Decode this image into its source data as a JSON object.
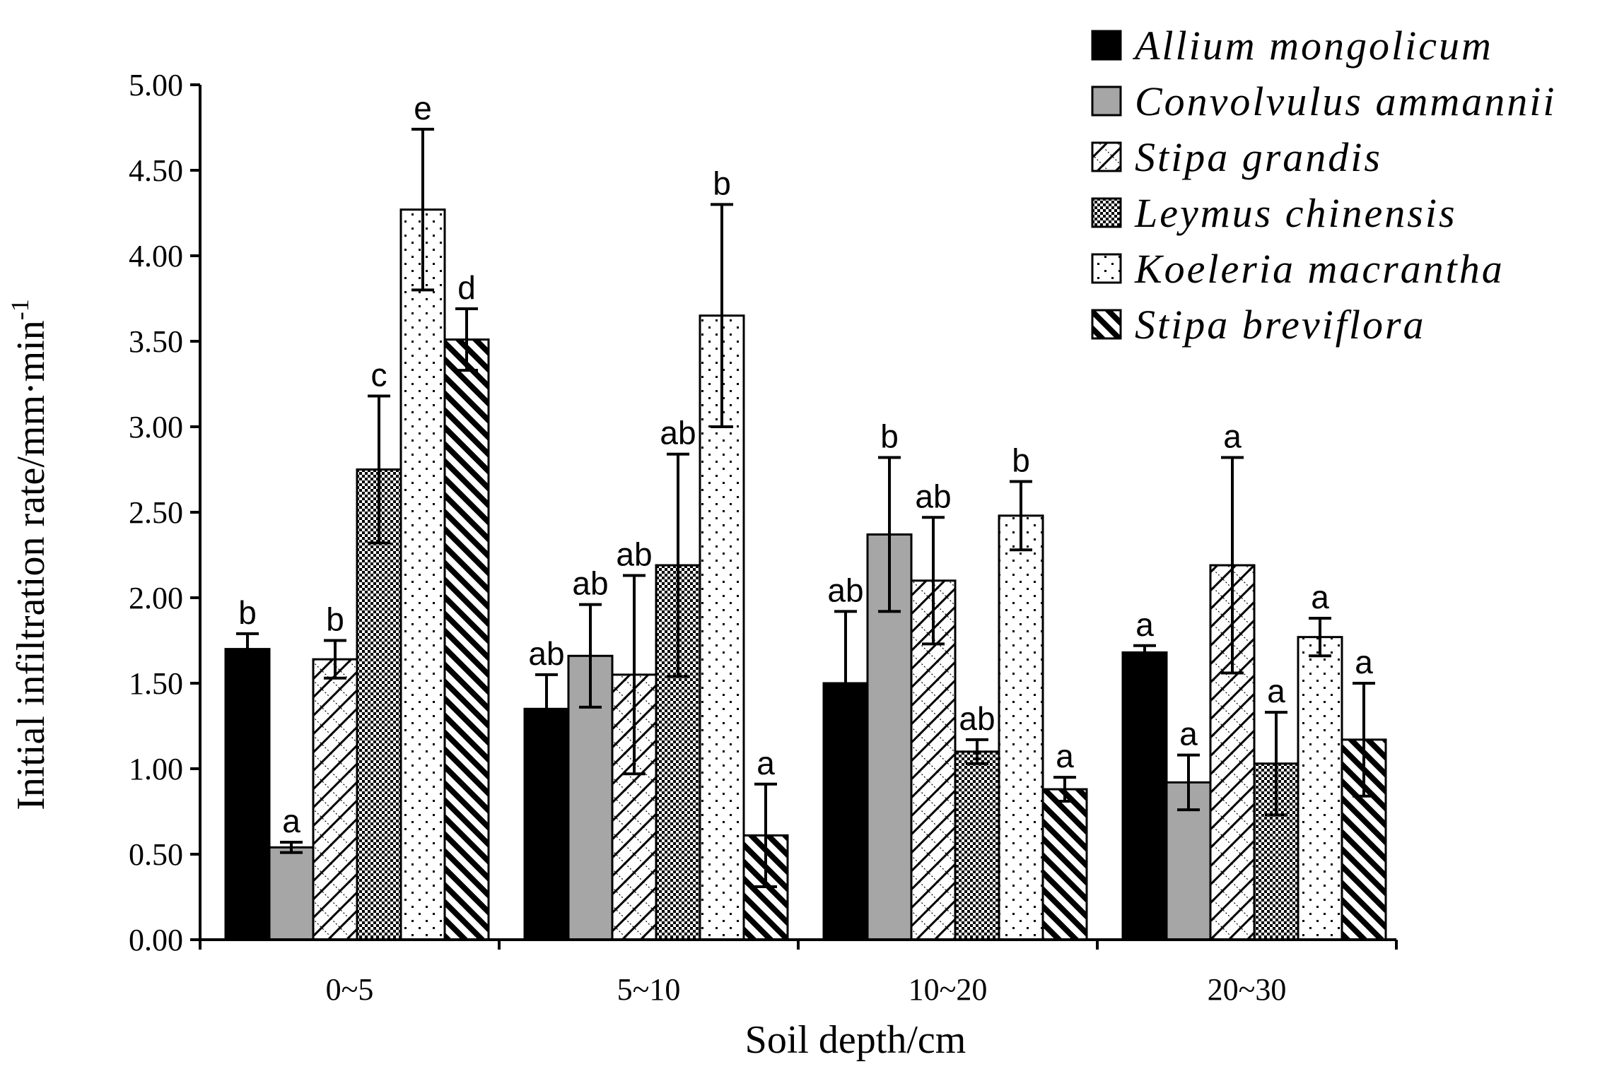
{
  "chart_data": {
    "type": "bar",
    "title": "",
    "xlabel": "Soil depth/cm",
    "ylabel": "Initial infiltration rate/mm·min",
    "ylabel_superscript": "-1",
    "ylim": [
      0,
      5
    ],
    "yticks": [
      "0.00",
      "0.50",
      "1.00",
      "1.50",
      "2.00",
      "2.50",
      "3.00",
      "3.50",
      "4.00",
      "4.50",
      "5.00"
    ],
    "categories": [
      "0~5",
      "5~10",
      "10~20",
      "20~30"
    ],
    "legend_position": "top-right",
    "series": [
      {
        "name": "Allium mongolicum",
        "fill": "solid-black",
        "values": [
          1.7,
          1.35,
          1.5,
          1.68
        ],
        "errors": [
          0.09,
          0.2,
          0.42,
          0.04
        ],
        "labels": [
          "b",
          "ab",
          "ab",
          "a"
        ]
      },
      {
        "name": "Convolvulus ammannii",
        "fill": "solid-gray",
        "values": [
          0.54,
          1.66,
          2.37,
          0.92
        ],
        "errors": [
          0.03,
          0.3,
          0.45,
          0.16
        ],
        "labels": [
          "a",
          "ab",
          "b",
          "a"
        ]
      },
      {
        "name": "Stipa grandis",
        "fill": "diagonal-cross",
        "values": [
          1.64,
          1.55,
          2.1,
          2.19
        ],
        "errors": [
          0.11,
          0.58,
          0.37,
          0.63
        ],
        "labels": [
          "b",
          "ab",
          "ab",
          "a"
        ]
      },
      {
        "name": "Leymus chinensis",
        "fill": "dense-checker",
        "values": [
          2.75,
          2.19,
          1.1,
          1.03
        ],
        "errors": [
          0.43,
          0.65,
          0.07,
          0.3
        ],
        "labels": [
          "c",
          "ab",
          "ab",
          "a"
        ]
      },
      {
        "name": "Koeleria macrantha",
        "fill": "sparse-dots",
        "values": [
          4.27,
          3.65,
          2.48,
          1.77
        ],
        "errors": [
          0.47,
          0.65,
          0.2,
          0.11
        ],
        "labels": [
          "e",
          "b",
          "b",
          "a"
        ]
      },
      {
        "name": "Stipa breviflora",
        "fill": "wide-diagonal",
        "values": [
          3.51,
          0.61,
          0.88,
          1.17
        ],
        "errors": [
          0.18,
          0.3,
          0.07,
          0.33
        ],
        "labels": [
          "d",
          "a",
          "a",
          "a"
        ]
      }
    ]
  }
}
